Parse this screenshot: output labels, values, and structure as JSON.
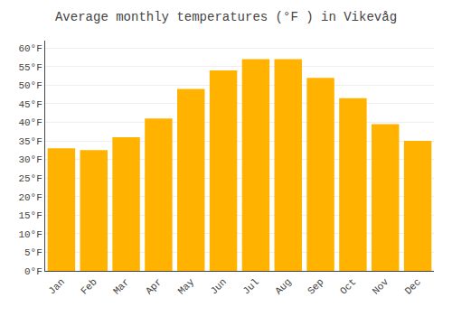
{
  "chart_data": {
    "type": "bar",
    "title": "Average monthly temperatures (°F ) in Vikevåg",
    "categories": [
      "Jan",
      "Feb",
      "Mar",
      "Apr",
      "May",
      "Jun",
      "Jul",
      "Aug",
      "Sep",
      "Oct",
      "Nov",
      "Dec"
    ],
    "values": [
      33,
      32.5,
      36,
      41,
      49,
      54,
      57,
      57,
      52,
      46.5,
      39.5,
      35
    ],
    "color": "#FFB300",
    "ylim": [
      0,
      62
    ],
    "yticks": [
      {
        "value": 0,
        "label": "0°F"
      },
      {
        "value": 5,
        "label": "5°F"
      },
      {
        "value": 10,
        "label": "10°F"
      },
      {
        "value": 15,
        "label": "15°F"
      },
      {
        "value": 20,
        "label": "20°F"
      },
      {
        "value": 25,
        "label": "25°F"
      },
      {
        "value": 30,
        "label": "30°F"
      },
      {
        "value": 35,
        "label": "35°F"
      },
      {
        "value": 40,
        "label": "40°F"
      },
      {
        "value": 45,
        "label": "45°F"
      },
      {
        "value": 50,
        "label": "50°F"
      },
      {
        "value": 55,
        "label": "55°F"
      },
      {
        "value": 60,
        "label": "60°F"
      }
    ],
    "grid": true
  }
}
